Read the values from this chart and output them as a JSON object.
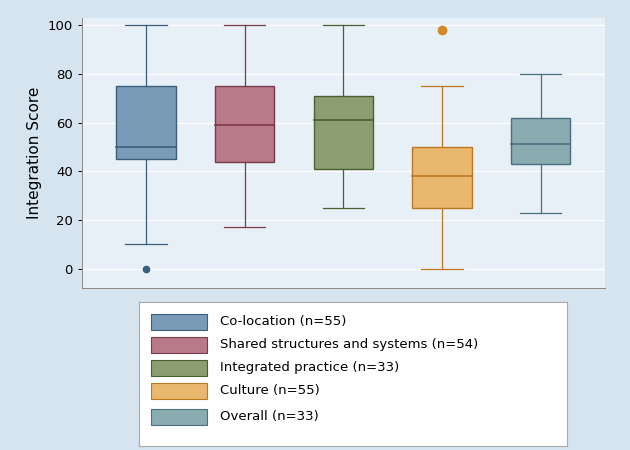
{
  "title": "",
  "ylabel": "Integration Score",
  "background_color": "#d6e4f0",
  "plot_background_color": "#e8f0f7",
  "ylim": [
    -8,
    103
  ],
  "yticks": [
    0,
    20,
    40,
    60,
    80,
    100
  ],
  "boxes": [
    {
      "label": "Co-location (n=55)",
      "color": "#7a9bb8",
      "edge_color": "#3a5f7a",
      "median": 50,
      "q1": 45,
      "q3": 75,
      "whisker_low": 10,
      "whisker_high": 100,
      "fliers_low": [
        0
      ],
      "fliers_high": [],
      "flier_color": "#3a5f7a"
    },
    {
      "label": "Shared structures and systems (n=54)",
      "color": "#b87a88",
      "edge_color": "#7a3a4a",
      "median": 59,
      "q1": 44,
      "q3": 75,
      "whisker_low": 17,
      "whisker_high": 100,
      "fliers_low": [],
      "fliers_high": [],
      "flier_color": "#7a3a4a"
    },
    {
      "label": "Integrated practice (n=33)",
      "color": "#8a9e72",
      "edge_color": "#4a6030",
      "median": 61,
      "q1": 41,
      "q3": 71,
      "whisker_low": 25,
      "whisker_high": 100,
      "fliers_low": [],
      "fliers_high": [],
      "flier_color": "#4a6030"
    },
    {
      "label": "Culture (n=55)",
      "color": "#e8b86e",
      "edge_color": "#c07820",
      "median": 38,
      "q1": 25,
      "q3": 50,
      "whisker_low": 0,
      "whisker_high": 75,
      "fliers_low": [],
      "fliers_high": [
        98
      ],
      "flier_color": "#d4882a"
    },
    {
      "label": "Overall (n=33)",
      "color": "#8aabb0",
      "edge_color": "#4a7080",
      "median": 51,
      "q1": 43,
      "q3": 62,
      "whisker_low": 23,
      "whisker_high": 80,
      "fliers_low": [],
      "fliers_high": [],
      "flier_color": "#4a7080"
    }
  ],
  "box_width": 0.6,
  "positions": [
    1,
    2,
    3,
    4,
    5
  ],
  "legend_fontsize": 9.5,
  "ylabel_fontsize": 11,
  "tick_fontsize": 9.5
}
